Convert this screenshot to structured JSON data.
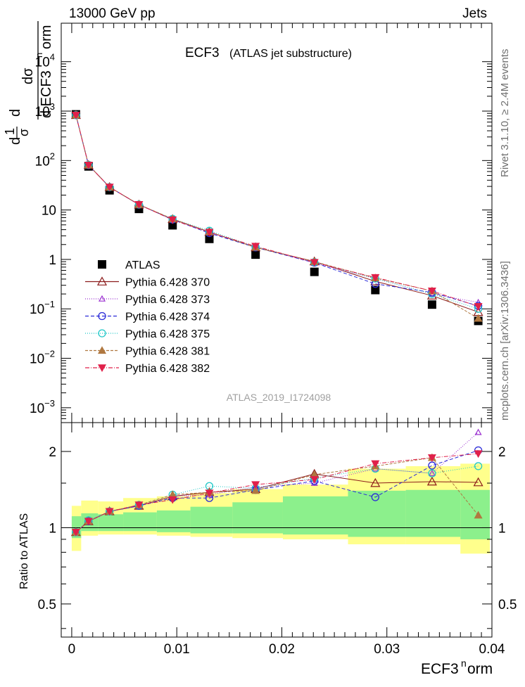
{
  "header": {
    "energy_label": "13000 GeV pp",
    "process_label": "Jets",
    "right_margin_top": "Rivet 3.1.10, ≥ 2.4M events",
    "right_margin_bottom": "mcplots.cern.ch [arXiv:1306.3436]"
  },
  "chart_data": [
    {
      "type": "scatter",
      "panel": "main",
      "title": "ECF3",
      "subtitle": "(ATLAS jet substructure)",
      "watermark": "ATLAS_2019_I1724098",
      "ylabel_parts": [
        "dσ",
        "d ECF3",
        "n",
        "orm",
        "d",
        "1",
        "σ",
        "d"
      ],
      "yscale": "log",
      "xlim": [
        -0.001,
        0.04
      ],
      "ylim": [
        0.0005,
        60000
      ],
      "y_ticks": [
        {
          "value": 0.001,
          "base": "10",
          "exp": "−3"
        },
        {
          "value": 0.01,
          "base": "10",
          "exp": "−2"
        },
        {
          "value": 0.1,
          "base": "10",
          "exp": "−1"
        },
        {
          "value": 1,
          "base": "1",
          "exp": ""
        },
        {
          "value": 10,
          "base": "10",
          "exp": ""
        },
        {
          "value": 100,
          "base": "10",
          "exp": "2"
        },
        {
          "value": 1000,
          "base": "10",
          "exp": "3"
        },
        {
          "value": 10000,
          "base": "10",
          "exp": "4"
        }
      ],
      "x": [
        0.0004,
        0.0016,
        0.0036,
        0.0064,
        0.0096,
        0.0131,
        0.0175,
        0.0231,
        0.0289,
        0.0343,
        0.0387
      ],
      "bin_edges": [
        0.0,
        0.0009,
        0.0025,
        0.0049,
        0.0081,
        0.0113,
        0.0153,
        0.0201,
        0.0263,
        0.0318,
        0.037,
        0.0398
      ],
      "legend_position": "middle-left",
      "series": [
        {
          "name": "ATLAS",
          "color": "#000000",
          "marker": "square",
          "dash": "",
          "values": [
            860,
            76,
            25,
            10.5,
            4.9,
            2.6,
            1.25,
            0.56,
            0.24,
            0.122,
            0.057
          ]
        },
        {
          "name": "Pythia 6.428 370",
          "color": "#8b1a1a",
          "marker": "triangle-open",
          "dash": "",
          "values": [
            830,
            81,
            29,
            12.8,
            6.5,
            3.6,
            1.75,
            0.91,
            0.36,
            0.185,
            0.086
          ]
        },
        {
          "name": "Pythia 6.428 373",
          "color": "#9b30d0",
          "marker": "triangle-open-small",
          "dash": "1,2",
          "values": [
            830,
            81,
            29,
            12.8,
            6.5,
            3.5,
            1.8,
            0.84,
            0.41,
            0.2,
            0.135
          ]
        },
        {
          "name": "Pythia 6.428 374",
          "color": "#2a2ad8",
          "marker": "circle-open",
          "dash": "5,3",
          "values": [
            830,
            81,
            29,
            12.8,
            6.4,
            3.4,
            1.75,
            0.86,
            0.32,
            0.215,
            0.115
          ]
        },
        {
          "name": "Pythia 6.428 375",
          "color": "#22c8c8",
          "marker": "circle-open",
          "dash": "1,2",
          "values": [
            830,
            82,
            29,
            12.9,
            6.6,
            3.8,
            1.8,
            0.88,
            0.41,
            0.2,
            0.1
          ]
        },
        {
          "name": "Pythia 6.428 381",
          "color": "#b07840",
          "marker": "triangle-filled",
          "dash": "4,2",
          "values": [
            830,
            81,
            29,
            12.9,
            6.6,
            3.6,
            1.75,
            0.9,
            0.42,
            0.23,
            0.064
          ]
        },
        {
          "name": "Pythia 6.428 382",
          "color": "#e0204a",
          "marker": "triangle-down-filled",
          "dash": "6,2,1,2",
          "values": [
            830,
            81,
            29,
            12.9,
            6.3,
            3.55,
            1.85,
            0.87,
            0.43,
            0.23,
            0.112
          ]
        }
      ]
    },
    {
      "type": "scatter",
      "panel": "ratio",
      "ylabel": "Ratio to ATLAS",
      "xlabel_parts": [
        "ECF3",
        "n",
        "orm"
      ],
      "yscale": "log",
      "xlim": [
        -0.001,
        0.04
      ],
      "ylim": [
        0.37,
        2.6
      ],
      "x_ticks": [
        0,
        0.01,
        0.02,
        0.03,
        0.04
      ],
      "x_tick_labels": [
        "0",
        "0.01",
        "0.02",
        "0.03",
        "0.04"
      ],
      "y_ticks": [
        0.5,
        1,
        2
      ],
      "y_tick_labels": [
        "0.5",
        "1",
        "2"
      ],
      "band_yellow": {
        "lo": [
          0.81,
          0.93,
          0.94,
          0.94,
          0.93,
          0.92,
          0.91,
          0.9,
          0.86,
          0.86,
          0.79
        ],
        "hi": [
          1.22,
          1.28,
          1.27,
          1.31,
          1.33,
          1.37,
          1.42,
          1.48,
          1.71,
          1.75,
          1.79
        ]
      },
      "band_green": {
        "lo": [
          0.91,
          0.97,
          0.97,
          0.97,
          0.96,
          0.95,
          0.95,
          0.94,
          0.92,
          0.92,
          0.9
        ],
        "hi": [
          1.11,
          1.14,
          1.13,
          1.15,
          1.17,
          1.21,
          1.26,
          1.33,
          1.4,
          1.41,
          1.41
        ]
      },
      "series": [
        {
          "name": "Pythia 6.428 370",
          "values": [
            0.96,
            1.06,
            1.16,
            1.22,
            1.33,
            1.38,
            1.42,
            1.63,
            1.5,
            1.52,
            1.51
          ]
        },
        {
          "name": "Pythia 6.428 373",
          "values": [
            0.96,
            1.06,
            1.16,
            1.22,
            1.33,
            1.35,
            1.45,
            1.5,
            1.71,
            1.64,
            2.38
          ]
        },
        {
          "name": "Pythia 6.428 374",
          "values": [
            0.96,
            1.06,
            1.16,
            1.22,
            1.31,
            1.31,
            1.41,
            1.53,
            1.32,
            1.76,
            2.02
          ]
        },
        {
          "name": "Pythia 6.428 375",
          "values": [
            0.96,
            1.07,
            1.16,
            1.23,
            1.35,
            1.46,
            1.43,
            1.57,
            1.71,
            1.64,
            1.75
          ]
        },
        {
          "name": "Pythia 6.428 381",
          "values": [
            0.96,
            1.06,
            1.16,
            1.23,
            1.35,
            1.38,
            1.4,
            1.62,
            1.75,
            1.89,
            1.12
          ]
        },
        {
          "name": "Pythia 6.428 382",
          "values": [
            0.96,
            1.06,
            1.16,
            1.23,
            1.29,
            1.37,
            1.48,
            1.55,
            1.79,
            1.89,
            1.96
          ]
        }
      ]
    }
  ]
}
